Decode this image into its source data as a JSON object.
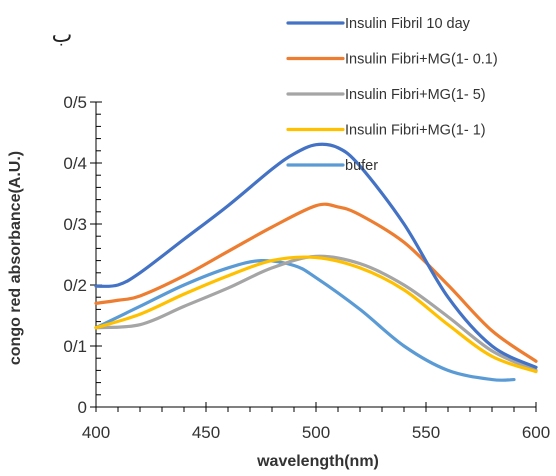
{
  "chart_data": {
    "type": "line",
    "corner_label": "ب",
    "xlabel": "wavelength(nm)",
    "ylabel": "congo red absorbance(A.U.)",
    "xlim": [
      400,
      600
    ],
    "ylim": [
      0,
      0.5
    ],
    "x_ticks": [
      400,
      450,
      500,
      550,
      600
    ],
    "x_tick_labels": [
      "400",
      "450",
      "500",
      "550",
      "600"
    ],
    "y_ticks": [
      0,
      0.1,
      0.2,
      0.3,
      0.4,
      0.5
    ],
    "y_tick_labels": [
      "0",
      "0/1",
      "0/2",
      "0/3",
      "0/4",
      "0/5"
    ],
    "grid": false,
    "legend_position": "top-right",
    "series": [
      {
        "name": "Insulin Fibril 10 day",
        "color": "#4472C4",
        "x": [
          400,
          410,
          420,
          440,
          460,
          480,
          490,
          500,
          510,
          520,
          540,
          560,
          580,
          600
        ],
        "y": [
          0.198,
          0.2,
          0.22,
          0.275,
          0.33,
          0.39,
          0.415,
          0.43,
          0.425,
          0.395,
          0.3,
          0.18,
          0.1,
          0.065
        ]
      },
      {
        "name": "Insulin Fibri+MG(1- 0.1)",
        "color": "#ED7D31",
        "x": [
          400,
          410,
          420,
          440,
          460,
          480,
          500,
          510,
          520,
          540,
          560,
          580,
          600
        ],
        "y": [
          0.17,
          0.175,
          0.182,
          0.215,
          0.255,
          0.295,
          0.33,
          0.328,
          0.315,
          0.27,
          0.2,
          0.125,
          0.075
        ]
      },
      {
        "name": "Insulin Fibri+MG(1- 5)",
        "color": "#A5A5A5",
        "x": [
          400,
          420,
          440,
          460,
          480,
          500,
          520,
          540,
          560,
          580,
          600
        ],
        "y": [
          0.13,
          0.135,
          0.165,
          0.195,
          0.228,
          0.247,
          0.235,
          0.2,
          0.148,
          0.092,
          0.06
        ]
      },
      {
        "name": "Insulin Fibri+MG(1- 1)",
        "color": "#FFC000",
        "x": [
          400,
          420,
          440,
          460,
          480,
          500,
          520,
          540,
          560,
          580,
          600
        ],
        "y": [
          0.13,
          0.152,
          0.185,
          0.215,
          0.24,
          0.245,
          0.228,
          0.192,
          0.135,
          0.083,
          0.058
        ]
      },
      {
        "name": "bufer",
        "color": "#5B9BD5",
        "x": [
          400,
          420,
          440,
          460,
          475,
          490,
          500,
          520,
          540,
          560,
          580,
          590
        ],
        "y": [
          0.13,
          0.165,
          0.2,
          0.228,
          0.24,
          0.232,
          0.212,
          0.16,
          0.1,
          0.06,
          0.045,
          0.045
        ]
      }
    ]
  }
}
